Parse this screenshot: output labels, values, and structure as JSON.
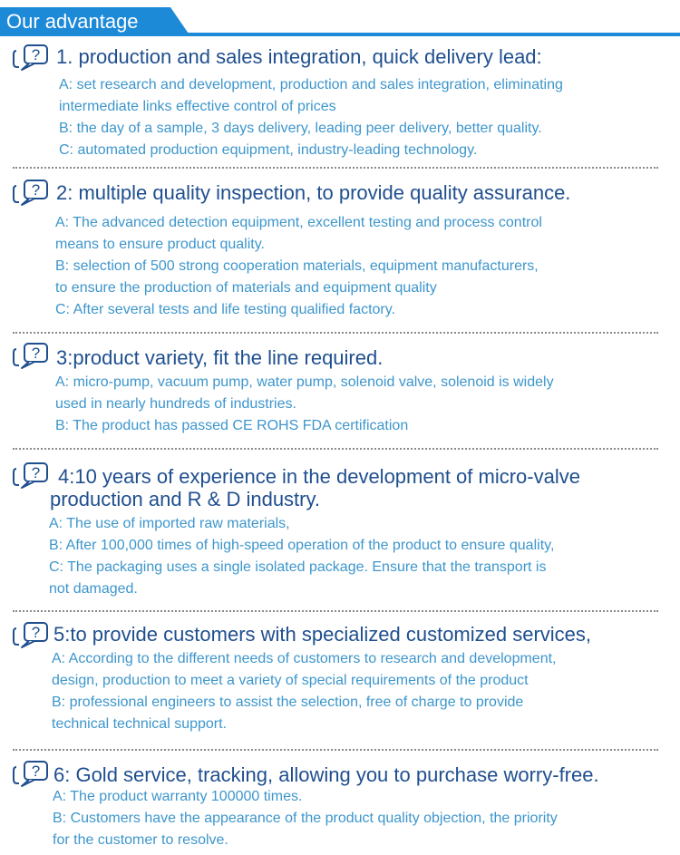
{
  "header": {
    "title": "Our advantage"
  },
  "sections": [
    {
      "heading": "1. production and sales integration, quick delivery lead:",
      "lines": [
        "A: set research and development, production and sales integration, eliminating",
        "intermediate links effective control of prices",
        "B: the day of a sample, 3 days delivery, leading peer delivery, better quality.",
        "C: automated production equipment, industry-leading technology."
      ]
    },
    {
      "heading": "2: multiple quality inspection, to provide quality assurance.",
      "lines": [
        "A: The advanced detection equipment, excellent testing and process control",
        "means to ensure product quality.",
        "B: selection of 500 strong cooperation materials, equipment manufacturers,",
        "to ensure the production of materials and equipment quality",
        "C: After several tests and life testing qualified factory."
      ]
    },
    {
      "heading": "3:product variety, fit the line required.",
      "lines": [
        "A: micro-pump, vacuum pump, water pump, solenoid valve, solenoid is widely",
        "used in nearly hundreds of industries.",
        "B: The product has passed CE ROHS FDA certification"
      ]
    },
    {
      "heading": "4:10 years of experience in the development of micro-valve",
      "heading_line2": "production and R & D industry.",
      "lines": [
        "A: The use of imported raw materials,",
        "B: After 100,000 times of high-speed operation of the product to ensure quality,",
        "C: The packaging uses a single isolated package. Ensure that the transport is",
        "not damaged."
      ]
    },
    {
      "heading": "5:to provide customers with specialized customized services,",
      "lines": [
        "A: According to the different needs of customers to research and development,",
        "design, production to meet a variety of special requirements of the product",
        "B: professional engineers to assist the selection, free of charge to provide",
        "technical technical support."
      ]
    },
    {
      "heading": "6: Gold service, tracking, allowing you to purchase worry-free.",
      "lines": [
        "A: The product warranty 100000 times.",
        "B: Customers have the appearance of the product quality objection, the priority",
        "for the customer to resolve."
      ]
    }
  ],
  "colors": {
    "accent": "#1d8ad8",
    "heading": "#1f4f8f",
    "body_text": "#3d96cc",
    "divider": "#8a8a8a"
  },
  "icons": {
    "section_icon": "question-mark-bubble-icon"
  }
}
